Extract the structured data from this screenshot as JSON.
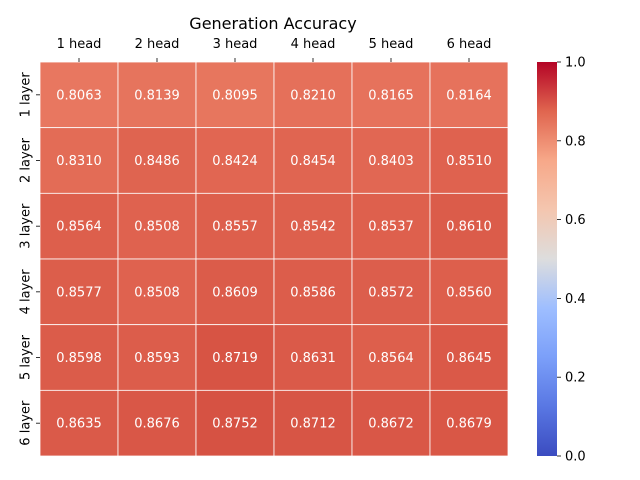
{
  "chart_data": {
    "type": "heatmap",
    "title": "Generation Accuracy",
    "x_categories": [
      "1 head",
      "2 head",
      "3 head",
      "4 head",
      "5 head",
      "6 head"
    ],
    "y_categories": [
      "1 layer",
      "2 layer",
      "3 layer",
      "4 layer",
      "5 layer",
      "6 layer"
    ],
    "values": [
      [
        0.8063,
        0.8139,
        0.8095,
        0.821,
        0.8165,
        0.8164
      ],
      [
        0.831,
        0.8486,
        0.8424,
        0.8454,
        0.8403,
        0.851
      ],
      [
        0.8564,
        0.8508,
        0.8557,
        0.8542,
        0.8537,
        0.861
      ],
      [
        0.8577,
        0.8508,
        0.8609,
        0.8586,
        0.8572,
        0.856
      ],
      [
        0.8598,
        0.8593,
        0.8719,
        0.8631,
        0.8564,
        0.8645
      ],
      [
        0.8635,
        0.8676,
        0.8752,
        0.8712,
        0.8672,
        0.8679
      ]
    ],
    "value_format": "0.0000",
    "colormap": "coolwarm",
    "colorbar": {
      "range": [
        0.0,
        1.0
      ],
      "ticks": [
        "0.0",
        "0.2",
        "0.4",
        "0.6",
        "0.8",
        "1.0"
      ],
      "colors": [
        "#3b4cc0",
        "#b40426"
      ]
    },
    "x_axis_position": "top",
    "y_tick_rotation": "vertical",
    "grid_lines": "white"
  }
}
